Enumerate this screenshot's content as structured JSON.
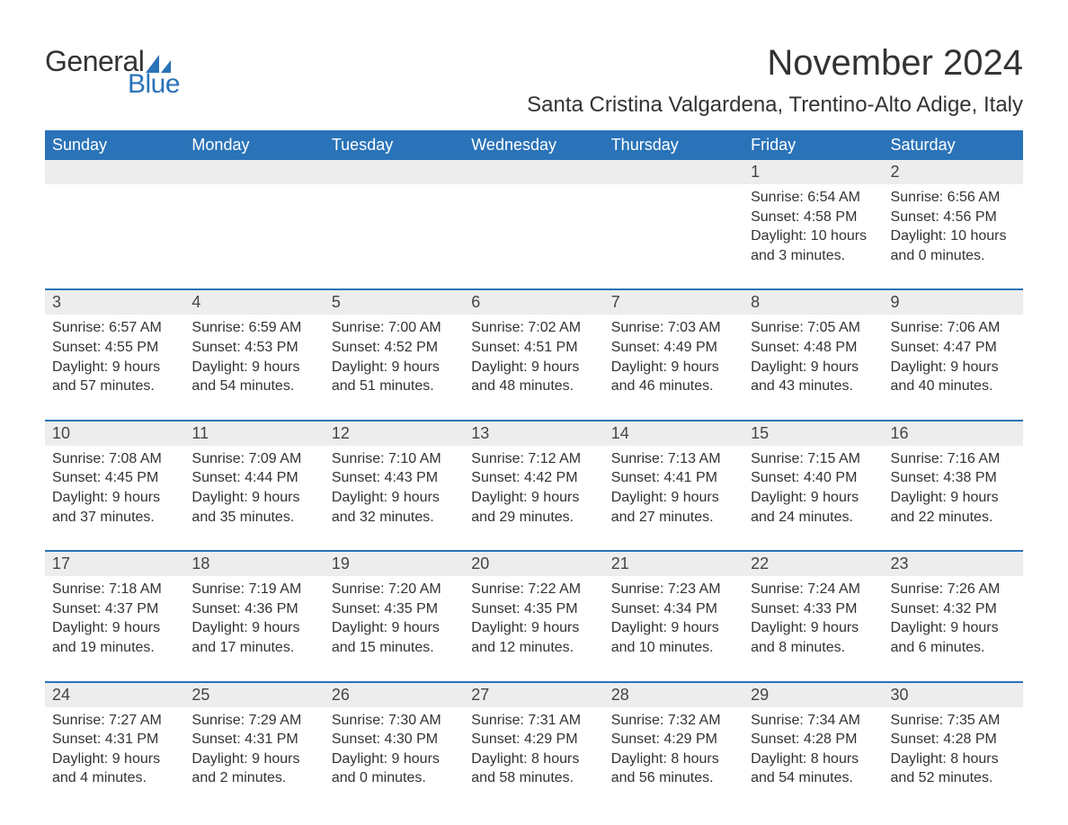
{
  "logo": {
    "word1": "General",
    "word2": "Blue",
    "icon_color": "#2a73b8",
    "text_color_general": "#333333",
    "text_color_blue": "#2a73b8"
  },
  "title": "November 2024",
  "location": "Santa Cristina Valgardena, Trentino-Alto Adige, Italy",
  "colors": {
    "header_bg": "#2a73b8",
    "header_text": "#ffffff",
    "daynum_bg": "#ededed",
    "text": "#333333",
    "week_border": "#2a73b8",
    "background": "#ffffff"
  },
  "typography": {
    "title_fontsize": 40,
    "location_fontsize": 24,
    "weekday_fontsize": 18,
    "daynum_fontsize": 18,
    "body_fontsize": 16,
    "font_family": "Arial"
  },
  "calendar": {
    "type": "calendar-month",
    "columns": 7,
    "rows": 5,
    "weekdays": [
      "Sunday",
      "Monday",
      "Tuesday",
      "Wednesday",
      "Thursday",
      "Friday",
      "Saturday"
    ],
    "weeks": [
      [
        {
          "empty": true
        },
        {
          "empty": true
        },
        {
          "empty": true
        },
        {
          "empty": true
        },
        {
          "empty": true
        },
        {
          "num": "1",
          "sunrise": "Sunrise: 6:54 AM",
          "sunset": "Sunset: 4:58 PM",
          "daylight": "Daylight: 10 hours and 3 minutes."
        },
        {
          "num": "2",
          "sunrise": "Sunrise: 6:56 AM",
          "sunset": "Sunset: 4:56 PM",
          "daylight": "Daylight: 10 hours and 0 minutes."
        }
      ],
      [
        {
          "num": "3",
          "sunrise": "Sunrise: 6:57 AM",
          "sunset": "Sunset: 4:55 PM",
          "daylight": "Daylight: 9 hours and 57 minutes."
        },
        {
          "num": "4",
          "sunrise": "Sunrise: 6:59 AM",
          "sunset": "Sunset: 4:53 PM",
          "daylight": "Daylight: 9 hours and 54 minutes."
        },
        {
          "num": "5",
          "sunrise": "Sunrise: 7:00 AM",
          "sunset": "Sunset: 4:52 PM",
          "daylight": "Daylight: 9 hours and 51 minutes."
        },
        {
          "num": "6",
          "sunrise": "Sunrise: 7:02 AM",
          "sunset": "Sunset: 4:51 PM",
          "daylight": "Daylight: 9 hours and 48 minutes."
        },
        {
          "num": "7",
          "sunrise": "Sunrise: 7:03 AM",
          "sunset": "Sunset: 4:49 PM",
          "daylight": "Daylight: 9 hours and 46 minutes."
        },
        {
          "num": "8",
          "sunrise": "Sunrise: 7:05 AM",
          "sunset": "Sunset: 4:48 PM",
          "daylight": "Daylight: 9 hours and 43 minutes."
        },
        {
          "num": "9",
          "sunrise": "Sunrise: 7:06 AM",
          "sunset": "Sunset: 4:47 PM",
          "daylight": "Daylight: 9 hours and 40 minutes."
        }
      ],
      [
        {
          "num": "10",
          "sunrise": "Sunrise: 7:08 AM",
          "sunset": "Sunset: 4:45 PM",
          "daylight": "Daylight: 9 hours and 37 minutes."
        },
        {
          "num": "11",
          "sunrise": "Sunrise: 7:09 AM",
          "sunset": "Sunset: 4:44 PM",
          "daylight": "Daylight: 9 hours and 35 minutes."
        },
        {
          "num": "12",
          "sunrise": "Sunrise: 7:10 AM",
          "sunset": "Sunset: 4:43 PM",
          "daylight": "Daylight: 9 hours and 32 minutes."
        },
        {
          "num": "13",
          "sunrise": "Sunrise: 7:12 AM",
          "sunset": "Sunset: 4:42 PM",
          "daylight": "Daylight: 9 hours and 29 minutes."
        },
        {
          "num": "14",
          "sunrise": "Sunrise: 7:13 AM",
          "sunset": "Sunset: 4:41 PM",
          "daylight": "Daylight: 9 hours and 27 minutes."
        },
        {
          "num": "15",
          "sunrise": "Sunrise: 7:15 AM",
          "sunset": "Sunset: 4:40 PM",
          "daylight": "Daylight: 9 hours and 24 minutes."
        },
        {
          "num": "16",
          "sunrise": "Sunrise: 7:16 AM",
          "sunset": "Sunset: 4:38 PM",
          "daylight": "Daylight: 9 hours and 22 minutes."
        }
      ],
      [
        {
          "num": "17",
          "sunrise": "Sunrise: 7:18 AM",
          "sunset": "Sunset: 4:37 PM",
          "daylight": "Daylight: 9 hours and 19 minutes."
        },
        {
          "num": "18",
          "sunrise": "Sunrise: 7:19 AM",
          "sunset": "Sunset: 4:36 PM",
          "daylight": "Daylight: 9 hours and 17 minutes."
        },
        {
          "num": "19",
          "sunrise": "Sunrise: 7:20 AM",
          "sunset": "Sunset: 4:35 PM",
          "daylight": "Daylight: 9 hours and 15 minutes."
        },
        {
          "num": "20",
          "sunrise": "Sunrise: 7:22 AM",
          "sunset": "Sunset: 4:35 PM",
          "daylight": "Daylight: 9 hours and 12 minutes."
        },
        {
          "num": "21",
          "sunrise": "Sunrise: 7:23 AM",
          "sunset": "Sunset: 4:34 PM",
          "daylight": "Daylight: 9 hours and 10 minutes."
        },
        {
          "num": "22",
          "sunrise": "Sunrise: 7:24 AM",
          "sunset": "Sunset: 4:33 PM",
          "daylight": "Daylight: 9 hours and 8 minutes."
        },
        {
          "num": "23",
          "sunrise": "Sunrise: 7:26 AM",
          "sunset": "Sunset: 4:32 PM",
          "daylight": "Daylight: 9 hours and 6 minutes."
        }
      ],
      [
        {
          "num": "24",
          "sunrise": "Sunrise: 7:27 AM",
          "sunset": "Sunset: 4:31 PM",
          "daylight": "Daylight: 9 hours and 4 minutes."
        },
        {
          "num": "25",
          "sunrise": "Sunrise: 7:29 AM",
          "sunset": "Sunset: 4:31 PM",
          "daylight": "Daylight: 9 hours and 2 minutes."
        },
        {
          "num": "26",
          "sunrise": "Sunrise: 7:30 AM",
          "sunset": "Sunset: 4:30 PM",
          "daylight": "Daylight: 9 hours and 0 minutes."
        },
        {
          "num": "27",
          "sunrise": "Sunrise: 7:31 AM",
          "sunset": "Sunset: 4:29 PM",
          "daylight": "Daylight: 8 hours and 58 minutes."
        },
        {
          "num": "28",
          "sunrise": "Sunrise: 7:32 AM",
          "sunset": "Sunset: 4:29 PM",
          "daylight": "Daylight: 8 hours and 56 minutes."
        },
        {
          "num": "29",
          "sunrise": "Sunrise: 7:34 AM",
          "sunset": "Sunset: 4:28 PM",
          "daylight": "Daylight: 8 hours and 54 minutes."
        },
        {
          "num": "30",
          "sunrise": "Sunrise: 7:35 AM",
          "sunset": "Sunset: 4:28 PM",
          "daylight": "Daylight: 8 hours and 52 minutes."
        }
      ]
    ]
  }
}
